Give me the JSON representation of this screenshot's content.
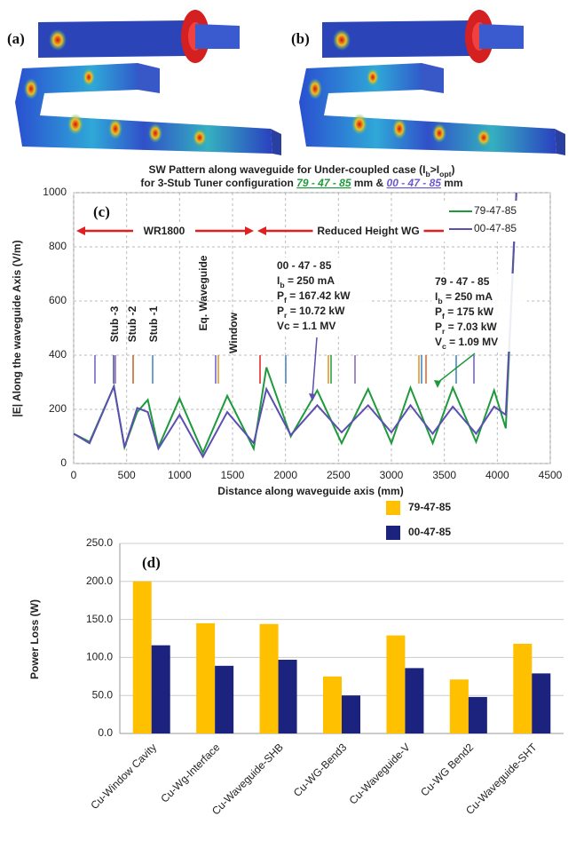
{
  "figure_labels": [
    "(a)",
    "(b)"
  ],
  "chart_data": [
    {
      "type": "line",
      "panel_label": "(c)",
      "title_lines": [
        [
          {
            "text": "SW Pattern along waveguide for Under-coupled case (I"
          },
          {
            "text": "b",
            "sub": true
          },
          {
            "text": ">I"
          },
          {
            "text": "opt",
            "sub": true
          },
          {
            "text": ")"
          }
        ],
        [
          {
            "text": "for 3-Stub Tuner configuration "
          },
          {
            "text": "79 - 47 - 85",
            "color": "#1e9a3c",
            "italic": true,
            "underline": true
          },
          {
            "text": " mm & "
          },
          {
            "text": "00 - 47 - 85",
            "color": "#6a5acd",
            "italic": true,
            "underline": true
          },
          {
            "text": " mm"
          }
        ]
      ],
      "x_label": "Distance along waveguide axis (mm)",
      "y_label": "|E| Along the waveguide Axis (V/m)",
      "x": [
        0,
        150,
        380,
        480,
        600,
        700,
        800,
        1000,
        1220,
        1450,
        1700,
        1820,
        2050,
        2300,
        2530,
        2780,
        3000,
        3180,
        3390,
        3580,
        3800,
        3970,
        4080,
        4180
      ],
      "series": [
        {
          "name": "79-47-85",
          "color": "#1e9a3c",
          "values": [
            110,
            80,
            285,
            60,
            190,
            235,
            60,
            240,
            40,
            250,
            55,
            355,
            100,
            270,
            75,
            275,
            75,
            280,
            75,
            280,
            80,
            270,
            130,
            1000
          ]
        },
        {
          "name": "00-47-85",
          "color": "#5b4fb0",
          "values": [
            110,
            75,
            285,
            60,
            205,
            190,
            55,
            180,
            25,
            190,
            75,
            275,
            105,
            215,
            115,
            215,
            115,
            215,
            110,
            210,
            110,
            210,
            180,
            1000
          ]
        }
      ],
      "xlim": [
        0,
        4500
      ],
      "ylim": [
        0,
        1000
      ],
      "xticks": [
        0,
        500,
        1000,
        1500,
        2000,
        2500,
        3000,
        3500,
        4000,
        4500
      ],
      "yticks": [
        0,
        200,
        400,
        600,
        800,
        1000
      ],
      "grid": true,
      "legend": "top-right",
      "regions": [
        "WR1800",
        "Reduced Height WG"
      ],
      "component_labels": [
        {
          "text": "Stub -3",
          "color": "#3a50a0"
        },
        {
          "text": "Stub -2",
          "color": "#3a50a0"
        },
        {
          "text": "Stub -1",
          "color": "#3a50a0"
        },
        {
          "text": "Eq. Waveguide",
          "color": "#3a50a0"
        },
        {
          "text": "Window",
          "color": "#e02020"
        }
      ],
      "notes": [
        {
          "color": "#5b4fb0",
          "lines": [
            "00 - 47 - 85",
            [
              {
                "text": "I"
              },
              {
                "text": "b",
                "sub": true
              },
              {
                "text": " = 250 mA"
              }
            ],
            [
              {
                "text": "P"
              },
              {
                "text": "f",
                "sub": true
              },
              {
                "text": " = 167.42 kW"
              }
            ],
            [
              {
                "text": "P"
              },
              {
                "text": "r",
                "sub": true
              },
              {
                "text": " = 10.72 kW"
              }
            ],
            "Vc = 1.1 MV"
          ]
        },
        {
          "color": "#1e9a3c",
          "lines": [
            "79 - 47 - 85",
            [
              {
                "text": "I"
              },
              {
                "text": "b",
                "sub": true
              },
              {
                "text": " = 250 mA"
              }
            ],
            [
              {
                "text": "P"
              },
              {
                "text": "f",
                "sub": true
              },
              {
                "text": " = 175 kW"
              }
            ],
            [
              {
                "text": "P"
              },
              {
                "text": "r",
                "sub": true
              },
              {
                "text": " = 7.03 kW"
              }
            ],
            [
              {
                "text": "V"
              },
              {
                "text": "c",
                "sub": true
              },
              {
                "text": " = 1.09 MV"
              }
            ]
          ]
        }
      ]
    },
    {
      "type": "bar",
      "panel_label": "(d)",
      "y_label": "Power Loss (W)",
      "categories": [
        "Cu-Window Cavity",
        "Cu-Wg-Interface",
        "Cu-Waveguide-SHB",
        "Cu-WG-Bend3",
        "Cu-Waveguide-V",
        "Cu-WG Bend2",
        "Cu-Waveguide-SHT"
      ],
      "series": [
        {
          "name": "79-47-85",
          "color": "#ffc000",
          "values": [
            200,
            145,
            144,
            75,
            129,
            71,
            118
          ]
        },
        {
          "name": "00-47-85",
          "color": "#1c237e",
          "values": [
            116,
            89,
            97,
            50,
            86,
            48,
            79
          ]
        }
      ],
      "ylim": [
        0,
        250
      ],
      "yticks": [
        {
          "value": 0,
          "label": "0.0"
        },
        {
          "value": 50,
          "label": "50.0"
        },
        {
          "value": 100,
          "label": "100.0"
        },
        {
          "value": 150,
          "label": "150.0"
        },
        {
          "value": 200,
          "label": "200.0"
        },
        {
          "value": 250,
          "label": "250.0"
        }
      ],
      "grid": true,
      "legend": "top-right"
    }
  ]
}
